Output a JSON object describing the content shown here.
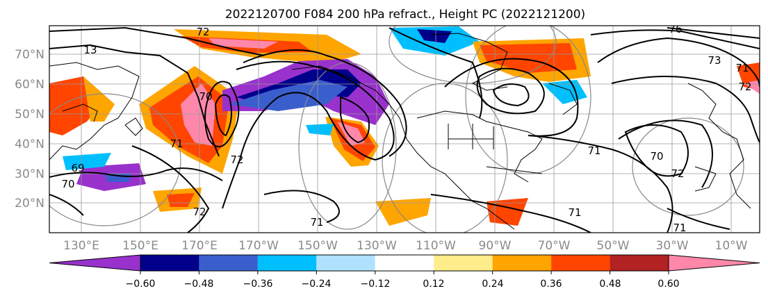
{
  "title": "2022120700 F084 200 hPa refract., Height PC (2022121200)",
  "map": {
    "lon_labels": [
      "130°E",
      "150°E",
      "170°E",
      "170°W",
      "150°W",
      "130°W",
      "110°W",
      "90°W",
      "70°W",
      "50°W",
      "30°W",
      "10°W"
    ],
    "lat_labels": [
      "70°N",
      "60°N",
      "50°N",
      "40°N",
      "30°N",
      "20°N"
    ],
    "contour_labels": [
      "72",
      "13",
      "70",
      "71",
      "72",
      "69",
      "70",
      "72",
      "71",
      "76",
      "73",
      "71",
      "71",
      "70",
      "72",
      "71",
      "71",
      "72"
    ]
  },
  "colorbar": {
    "colors": [
      "#9932cc",
      "#00008b",
      "#3a5fcd",
      "#00bfff",
      "#b0e2ff",
      "#ffffff",
      "#ffec8b",
      "#ffa500",
      "#ff4500",
      "#b22222",
      "#ff88aa"
    ],
    "tick_labels": [
      "−0.60",
      "−0.48",
      "−0.36",
      "−0.24",
      "−0.12",
      "0.12",
      "0.24",
      "0.36",
      "0.48",
      "0.60"
    ]
  }
}
